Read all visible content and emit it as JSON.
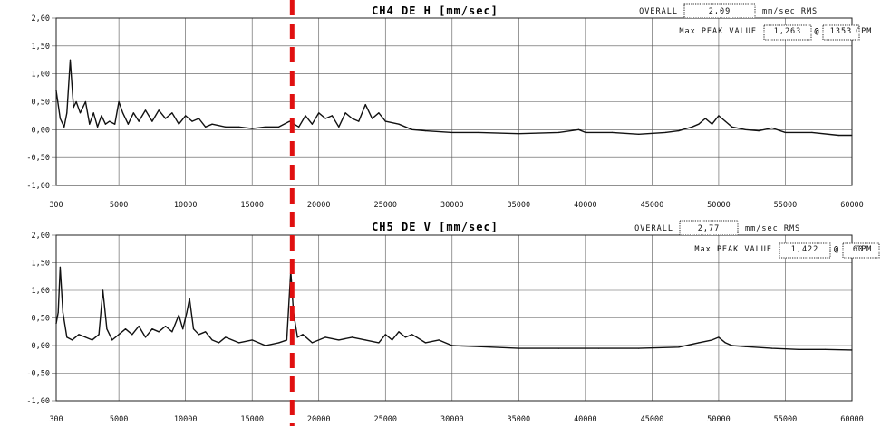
{
  "chart_data": [
    {
      "type": "line",
      "title": "CH4 DE H [mm/sec]",
      "overall_label": "OVERALL",
      "overall_value": "2,09",
      "overall_unit": "mm/sec RMS",
      "peak_label": "Max PEAK VALUE",
      "peak_value": "1,263",
      "peak_at": "@",
      "peak_freq": "1353",
      "peak_unit": "CPM",
      "xlim": [
        300,
        60000
      ],
      "ylim": [
        -1.0,
        2.0
      ],
      "x_ticks": [
        300,
        5000,
        10000,
        15000,
        20000,
        25000,
        30000,
        35000,
        40000,
        45000,
        50000,
        55000,
        60000
      ],
      "x_tick_labels": [
        "300",
        "5000",
        "10000",
        "15000",
        "20000",
        "25000",
        "30000",
        "35000",
        "40000",
        "45000",
        "50000",
        "55000",
        "60000"
      ],
      "y_ticks": [
        2.0,
        1.5,
        1.0,
        0.5,
        0.0,
        -0.5,
        -1.0
      ],
      "y_tick_labels": [
        "2,00",
        "1,50",
        "1,00",
        "0,50",
        "0,00",
        "-0,50",
        "-1,00"
      ],
      "grid": true,
      "x": [
        300,
        600,
        900,
        1100,
        1353,
        1600,
        1800,
        2100,
        2500,
        2800,
        3100,
        3400,
        3700,
        4000,
        4300,
        4700,
        5000,
        5300,
        5700,
        6100,
        6500,
        7000,
        7500,
        8000,
        8500,
        9000,
        9500,
        10000,
        10500,
        11000,
        11500,
        12000,
        13000,
        14000,
        15000,
        16000,
        17000,
        17800,
        18500,
        19000,
        19500,
        20000,
        20500,
        21000,
        21500,
        22000,
        22500,
        23000,
        23500,
        24000,
        24500,
        25000,
        26000,
        27000,
        28000,
        30000,
        32000,
        35000,
        38000,
        39500,
        40000,
        42000,
        44000,
        46000,
        47000,
        48000,
        48500,
        49000,
        49500,
        50000,
        50500,
        51000,
        52000,
        53000,
        54000,
        55000,
        57000,
        59000,
        60000
      ],
      "y": [
        0.7,
        0.2,
        0.05,
        0.3,
        1.25,
        0.4,
        0.5,
        0.3,
        0.5,
        0.1,
        0.3,
        0.05,
        0.25,
        0.1,
        0.15,
        0.1,
        0.5,
        0.3,
        0.1,
        0.3,
        0.15,
        0.35,
        0.15,
        0.35,
        0.2,
        0.3,
        0.1,
        0.25,
        0.15,
        0.2,
        0.05,
        0.1,
        0.05,
        0.05,
        0.02,
        0.05,
        0.05,
        0.15,
        0.05,
        0.25,
        0.1,
        0.3,
        0.2,
        0.25,
        0.05,
        0.3,
        0.2,
        0.15,
        0.45,
        0.2,
        0.3,
        0.15,
        0.1,
        0.0,
        -0.02,
        -0.05,
        -0.05,
        -0.07,
        -0.05,
        0.0,
        -0.05,
        -0.05,
        -0.08,
        -0.05,
        -0.02,
        0.05,
        0.1,
        0.2,
        0.1,
        0.25,
        0.15,
        0.05,
        0.0,
        -0.02,
        0.03,
        -0.05,
        -0.05,
        -0.1,
        -0.1
      ]
    },
    {
      "type": "line",
      "title": "CH5 DE V [mm/sec]",
      "overall_label": "OVERALL",
      "overall_value": "2,77",
      "overall_unit": "mm/sec RMS",
      "peak_label": "Max PEAK VALUE",
      "peak_value": "1,422",
      "peak_at": "@",
      "peak_freq": "601",
      "peak_unit": "CPM",
      "xlim": [
        300,
        60000
      ],
      "ylim": [
        -1.0,
        2.0
      ],
      "x_ticks": [
        300,
        5000,
        10000,
        15000,
        20000,
        25000,
        30000,
        35000,
        40000,
        45000,
        50000,
        55000,
        60000
      ],
      "x_tick_labels": [
        "300",
        "5000",
        "10000",
        "15000",
        "20000",
        "25000",
        "30000",
        "35000",
        "40000",
        "45000",
        "50000",
        "55000",
        "60000"
      ],
      "y_ticks": [
        2.0,
        1.5,
        1.0,
        0.5,
        0.0,
        -0.5,
        -1.0
      ],
      "y_tick_labels": [
        "2,00",
        "1,50",
        "1,00",
        "0,50",
        "0,00",
        "-0,50",
        "-1,00"
      ],
      "grid": true,
      "x": [
        300,
        450,
        601,
        800,
        1100,
        1500,
        2000,
        2500,
        3000,
        3500,
        3800,
        4100,
        4500,
        5000,
        5500,
        6000,
        6500,
        7000,
        7500,
        8000,
        8500,
        9000,
        9500,
        9800,
        10100,
        10300,
        10600,
        11000,
        11500,
        12000,
        12500,
        13000,
        14000,
        15000,
        16000,
        17000,
        17600,
        17900,
        18100,
        18400,
        18800,
        19500,
        20500,
        21500,
        22500,
        23500,
        24500,
        25000,
        25500,
        26000,
        26500,
        27000,
        28000,
        29000,
        30000,
        32000,
        35000,
        38000,
        41000,
        44000,
        47000,
        48500,
        49500,
        50000,
        50500,
        51000,
        52000,
        54000,
        56000,
        58000,
        60000
      ],
      "y": [
        0.4,
        0.6,
        1.42,
        0.6,
        0.15,
        0.1,
        0.2,
        0.15,
        0.1,
        0.2,
        1.0,
        0.3,
        0.1,
        0.2,
        0.3,
        0.2,
        0.35,
        0.15,
        0.3,
        0.25,
        0.35,
        0.25,
        0.55,
        0.3,
        0.6,
        0.85,
        0.3,
        0.2,
        0.25,
        0.1,
        0.05,
        0.15,
        0.05,
        0.1,
        0.0,
        0.05,
        0.1,
        1.35,
        0.6,
        0.15,
        0.2,
        0.05,
        0.15,
        0.1,
        0.15,
        0.1,
        0.05,
        0.2,
        0.1,
        0.25,
        0.15,
        0.2,
        0.05,
        0.1,
        0.0,
        -0.02,
        -0.05,
        -0.05,
        -0.05,
        -0.05,
        -0.03,
        0.05,
        0.1,
        0.15,
        0.05,
        0.0,
        -0.02,
        -0.05,
        -0.07,
        -0.07,
        -0.08
      ]
    }
  ],
  "marker": {
    "x": 18000,
    "color": "#e01010"
  }
}
